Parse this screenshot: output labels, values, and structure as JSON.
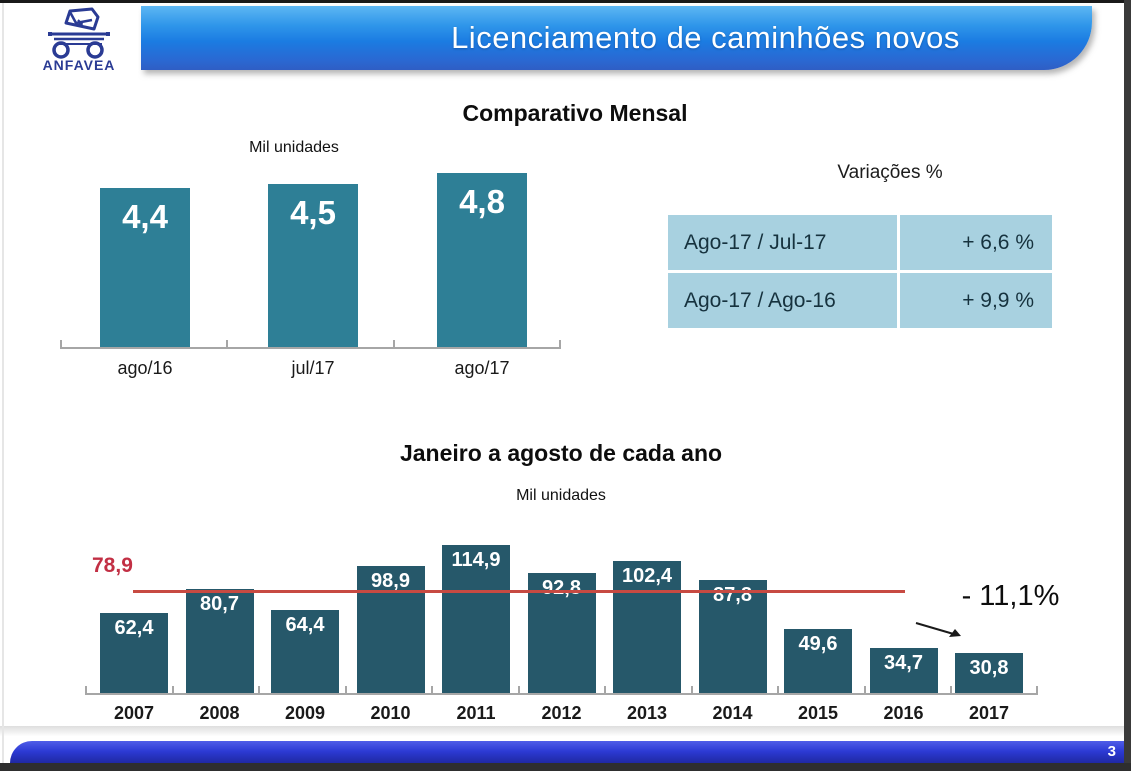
{
  "slide": {
    "title": "Licenciamento de caminhões novos",
    "logo_text": "ANFAVEA",
    "page_number": "3"
  },
  "colors": {
    "banner_blue_top": "#5db7f3",
    "banner_blue_bottom": "#2f5ec4",
    "monthly_bar_teal": "#2e7f96",
    "yearly_bar_teal": "#26586a",
    "table_cell_blue": "#a8d1e0",
    "reference_red": "#c74a42",
    "footer_blue": "#2c3ad4"
  },
  "chart_data": [
    {
      "type": "bar",
      "title": "Comparativo Mensal",
      "ylabel": "Mil unidades",
      "categories": [
        "ago/16",
        "jul/17",
        "ago/17"
      ],
      "values": [
        4.4,
        4.5,
        4.8
      ],
      "value_labels": [
        "4,4",
        "4,5",
        "4,8"
      ],
      "ylim": [
        0,
        5.2
      ],
      "grid": false,
      "legend": "none"
    },
    {
      "type": "bar",
      "title": "Janeiro a agosto de cada ano",
      "ylabel": "Mil unidades",
      "categories": [
        "2007",
        "2008",
        "2009",
        "2010",
        "2011",
        "2012",
        "2013",
        "2014",
        "2015",
        "2016",
        "2017"
      ],
      "values": [
        62.4,
        80.7,
        64.4,
        98.9,
        114.9,
        92.8,
        102.4,
        87.8,
        49.6,
        34.7,
        30.8
      ],
      "value_labels": [
        "62,4",
        "80,7",
        "64,4",
        "98,9",
        "114,9",
        "92,8",
        "102,4",
        "87,8",
        "49,6",
        "34,7",
        "30,8"
      ],
      "ylim": [
        0,
        134
      ],
      "grid": false,
      "legend": "none",
      "reference_line": {
        "value": 78.9,
        "label": "78,9"
      },
      "annotation": "- 11,1%"
    }
  ],
  "variations_table": {
    "title": "Variações %",
    "rows": [
      {
        "label": "Ago-17 / Jul-17",
        "value": "+ 6,6 %"
      },
      {
        "label": "Ago-17 / Ago-16",
        "value": "+ 9,9 %"
      }
    ]
  }
}
